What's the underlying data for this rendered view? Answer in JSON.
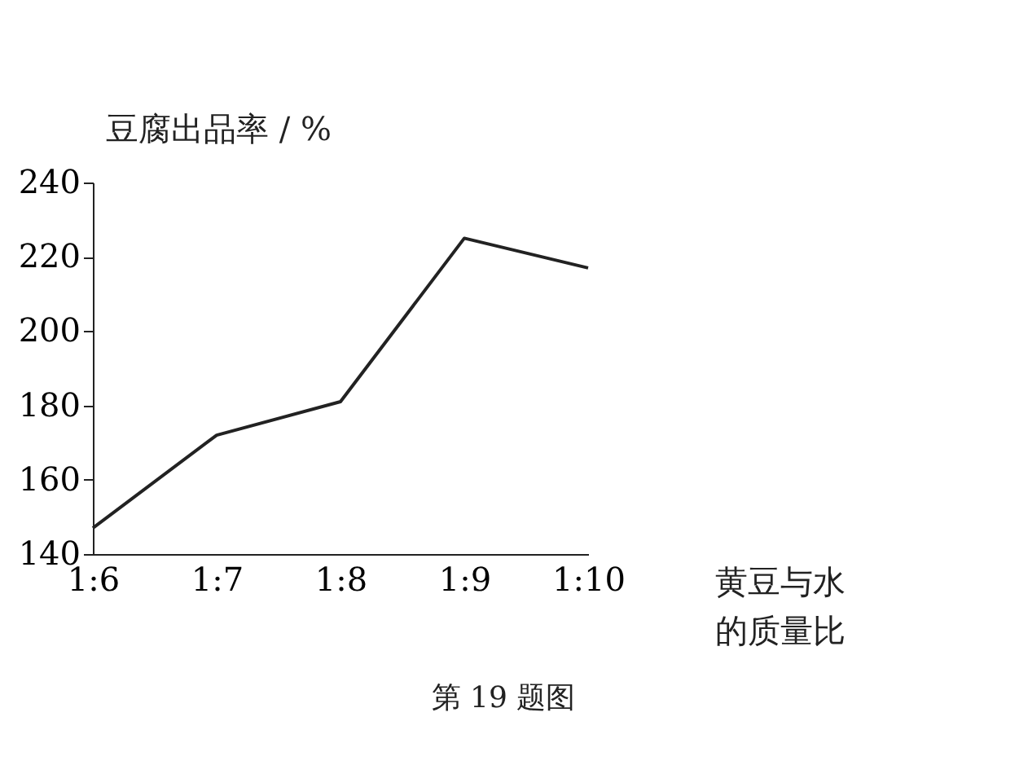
{
  "chart_data": {
    "type": "line",
    "ylabel": "豆腐出品率 / %",
    "xlabel": "黄豆与水的质量比",
    "categories": [
      "1:6",
      "1:7",
      "1:8",
      "1:9",
      "1:10"
    ],
    "series": [
      {
        "color": "#222222",
        "values": [
          147,
          172,
          181,
          225,
          217
        ]
      }
    ],
    "ylim": [
      140,
      240
    ],
    "yticks": [
      140,
      160,
      180,
      200,
      220,
      240
    ],
    "grid": false,
    "marker": "none",
    "line_style": "solid",
    "annotations": [
      "第 19 题图"
    ]
  }
}
